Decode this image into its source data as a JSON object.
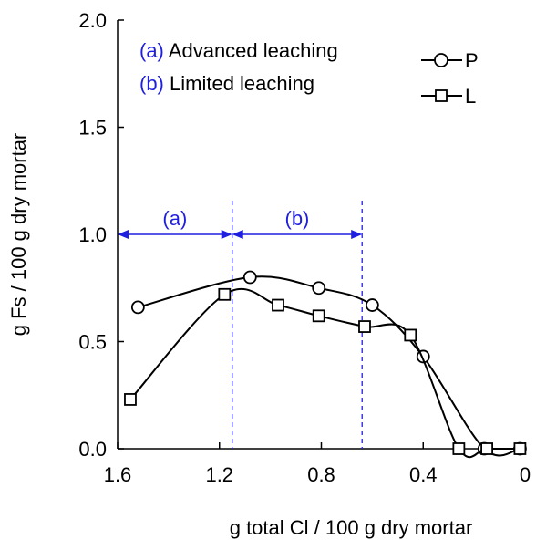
{
  "chart_data": {
    "type": "line",
    "xlabel": "g total Cl / 100 g dry mortar",
    "ylabel": "g Fs / 100 g dry mortar",
    "xlim": [
      1.6,
      0
    ],
    "ylim": [
      0,
      2.0
    ],
    "x_reversed": true,
    "x_ticks": [
      1.6,
      1.2,
      0.8,
      0.4,
      0
    ],
    "x_tick_labels": [
      "1.6",
      "1.2",
      "0.8",
      "0.4",
      "0"
    ],
    "y_ticks": [
      0,
      0.5,
      1.0,
      1.5,
      2.0
    ],
    "y_tick_labels": [
      "0.0",
      "0.5",
      "1.0",
      "1.5",
      "2.0"
    ],
    "grid": false,
    "legend_position": "top-right",
    "series": [
      {
        "name": "P",
        "marker": "circle",
        "x": [
          1.52,
          1.08,
          0.81,
          0.6,
          0.4,
          0.16,
          0.02
        ],
        "y": [
          0.66,
          0.8,
          0.75,
          0.67,
          0.43,
          0.0,
          0.0
        ]
      },
      {
        "name": "L",
        "marker": "square",
        "x": [
          1.55,
          1.18,
          0.97,
          0.81,
          0.63,
          0.45,
          0.26,
          0.15,
          0.02
        ],
        "y": [
          0.23,
          0.72,
          0.67,
          0.62,
          0.57,
          0.53,
          0.0,
          0.0,
          0.0
        ]
      }
    ],
    "reference_lines_x": [
      1.15,
      0.64
    ],
    "regions": [
      {
        "label": "(a)",
        "x_from": 1.6,
        "x_to": 1.15,
        "y": 1.0
      },
      {
        "label": "(b)",
        "x_from": 1.15,
        "x_to": 0.64,
        "y": 1.0
      }
    ],
    "annotations": [
      {
        "key": "(a)",
        "text": "Advanced leaching"
      },
      {
        "key": "(b)",
        "text": "Limited leaching"
      }
    ],
    "colors": {
      "axis": "#000000",
      "series": "#000000",
      "annotation": "#1f1fe0"
    }
  }
}
